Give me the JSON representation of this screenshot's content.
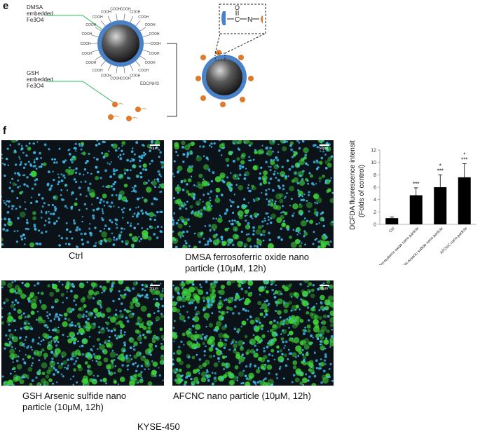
{
  "panel_e": {
    "letter": "e",
    "label_dmsa": [
      "DMSA",
      "embedded",
      "Fe3O4"
    ],
    "label_gsh": [
      "GSH",
      "embedded",
      "Fe3O4"
    ],
    "cooh": "COOH",
    "edc_nhs": "EDC/NHS",
    "amide": {
      "o": "O",
      "c": "C",
      "n": "N"
    }
  },
  "panel_f": {
    "letter": "f",
    "scale_bar": "50μm",
    "images": [
      {
        "caption_lines": [
          "Ctrl"
        ],
        "density": 0.15
      },
      {
        "caption_lines": [
          "DMSA ferrosoferric oxide nano",
          "particle (10μM, 12h)"
        ],
        "density": 0.45
      },
      {
        "caption_lines": [
          "GSH Arsenic sulfide nano",
          "particle (10μM, 12h)"
        ],
        "density": 0.62
      },
      {
        "caption_lines": [
          "AFCNC nano particle (10μM, 12h)"
        ],
        "density": 0.8
      }
    ],
    "cell_line": "KYSE-450",
    "colors": {
      "nuclei": "#3fb8e8",
      "green": "#3fd43a",
      "background": "#0b1218"
    }
  },
  "chart_data": {
    "type": "bar",
    "categories": [
      "Ctrl",
      "DMSA ferrosoferric oxide nano particle",
      "GSH Arsenic sulfide nano particle",
      "AFCNC nano particle"
    ],
    "values": [
      1.0,
      4.7,
      6.0,
      7.6
    ],
    "errors": [
      0.2,
      1.2,
      2.0,
      2.2
    ],
    "annotations": [
      [],
      [
        "***"
      ],
      [
        "*",
        "***"
      ],
      [
        "*",
        "***"
      ]
    ],
    "ylabel_lines": [
      "DCFDA fluorescence intensity",
      "(Folds of control)"
    ],
    "ylim": [
      0,
      12
    ],
    "yticks": [
      0,
      2,
      4,
      6,
      8,
      10,
      12
    ],
    "bar_color": "#000000"
  }
}
